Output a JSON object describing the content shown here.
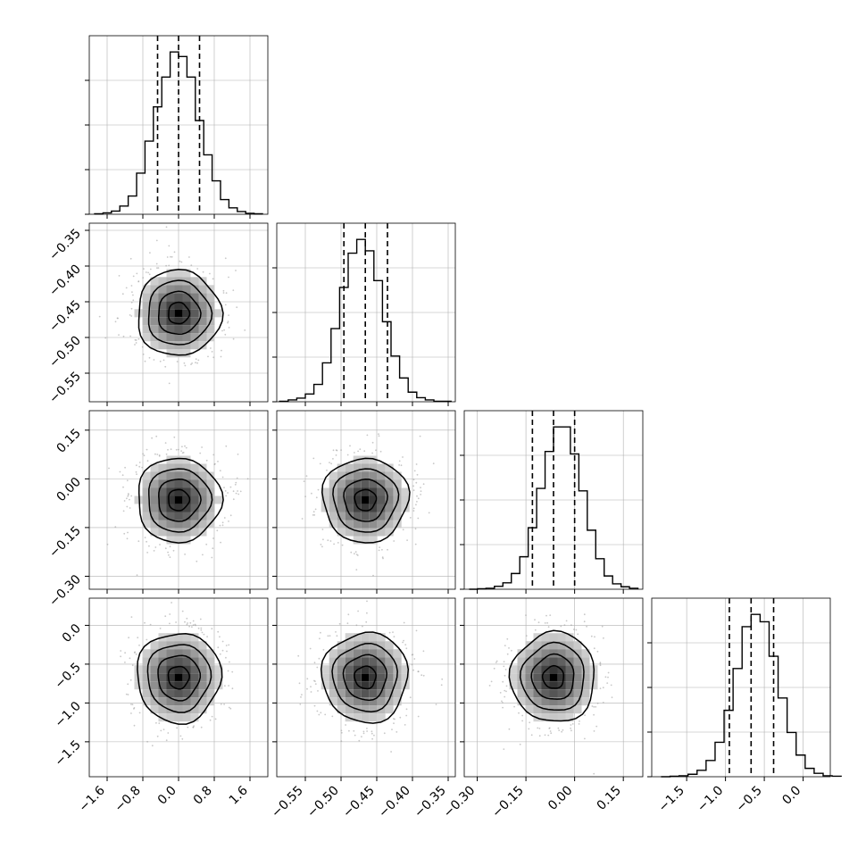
{
  "colors": {
    "ink": "#000000",
    "grid": "#b0b0b0",
    "scatter": "#9a9a9a",
    "background": "#ffffff"
  },
  "chart_data": {
    "type": "corner",
    "title": "",
    "grid": true,
    "parameters": [
      {
        "name": "",
        "range": [
          -2.0,
          2.0
        ],
        "ticks": [
          -1.6,
          -0.8,
          0.0,
          0.8,
          1.6
        ],
        "tick_labels": [
          "−1.6",
          "−0.8",
          "0.0",
          "0.8",
          "1.6"
        ],
        "quantiles": [
          -0.47,
          0.0,
          0.47
        ],
        "center": 0.0,
        "sigma": 0.47
      },
      {
        "name": "",
        "range": [
          -0.59,
          -0.34
        ],
        "ticks": [
          -0.55,
          -0.5,
          -0.45,
          -0.4,
          -0.35
        ],
        "tick_labels": [
          "−0.55",
          "−0.50",
          "−0.45",
          "−0.40",
          "−0.35"
        ],
        "quantiles": [
          -0.496,
          -0.466,
          -0.435
        ],
        "center": -0.466,
        "sigma": 0.03
      },
      {
        "name": "",
        "range": [
          -0.34,
          0.21
        ],
        "ticks": [
          -0.3,
          -0.15,
          0.0,
          0.15
        ],
        "tick_labels": [
          "−0.30",
          "−0.15",
          "0.00",
          "0.15"
        ],
        "quantiles": [
          -0.13,
          -0.065,
          0.0
        ],
        "center": -0.065,
        "sigma": 0.065
      },
      {
        "name": "",
        "range": [
          -1.95,
          0.35
        ],
        "ticks": [
          -1.5,
          -1.0,
          -0.5,
          0.0
        ],
        "tick_labels": [
          "−1.5",
          "−1.0",
          "−0.5",
          "0.0"
        ],
        "quantiles": [
          -0.95,
          -0.67,
          -0.38
        ],
        "center": -0.67,
        "sigma": 0.29
      }
    ],
    "histograms": [
      {
        "bin_count": [
          1,
          3,
          7,
          18,
          40,
          90,
          160,
          235,
          300,
          355,
          345,
          300,
          205,
          130,
          73,
          32,
          14,
          6,
          2,
          1
        ]
      },
      {
        "bin_count": [
          1,
          4,
          8,
          17,
          38,
          85,
          160,
          250,
          325,
          355,
          330,
          265,
          175,
          100,
          52,
          21,
          9,
          4,
          1,
          1
        ]
      },
      {
        "bin_count": [
          0,
          1,
          2,
          6,
          13,
          32,
          66,
          125,
          205,
          280,
          330,
          330,
          275,
          200,
          120,
          62,
          27,
          11,
          5,
          2
        ]
      },
      {
        "bin_count": [
          0,
          1,
          2,
          5,
          13,
          33,
          70,
          135,
          220,
          305,
          330,
          315,
          245,
          160,
          90,
          44,
          17,
          7,
          2,
          1
        ]
      }
    ]
  }
}
